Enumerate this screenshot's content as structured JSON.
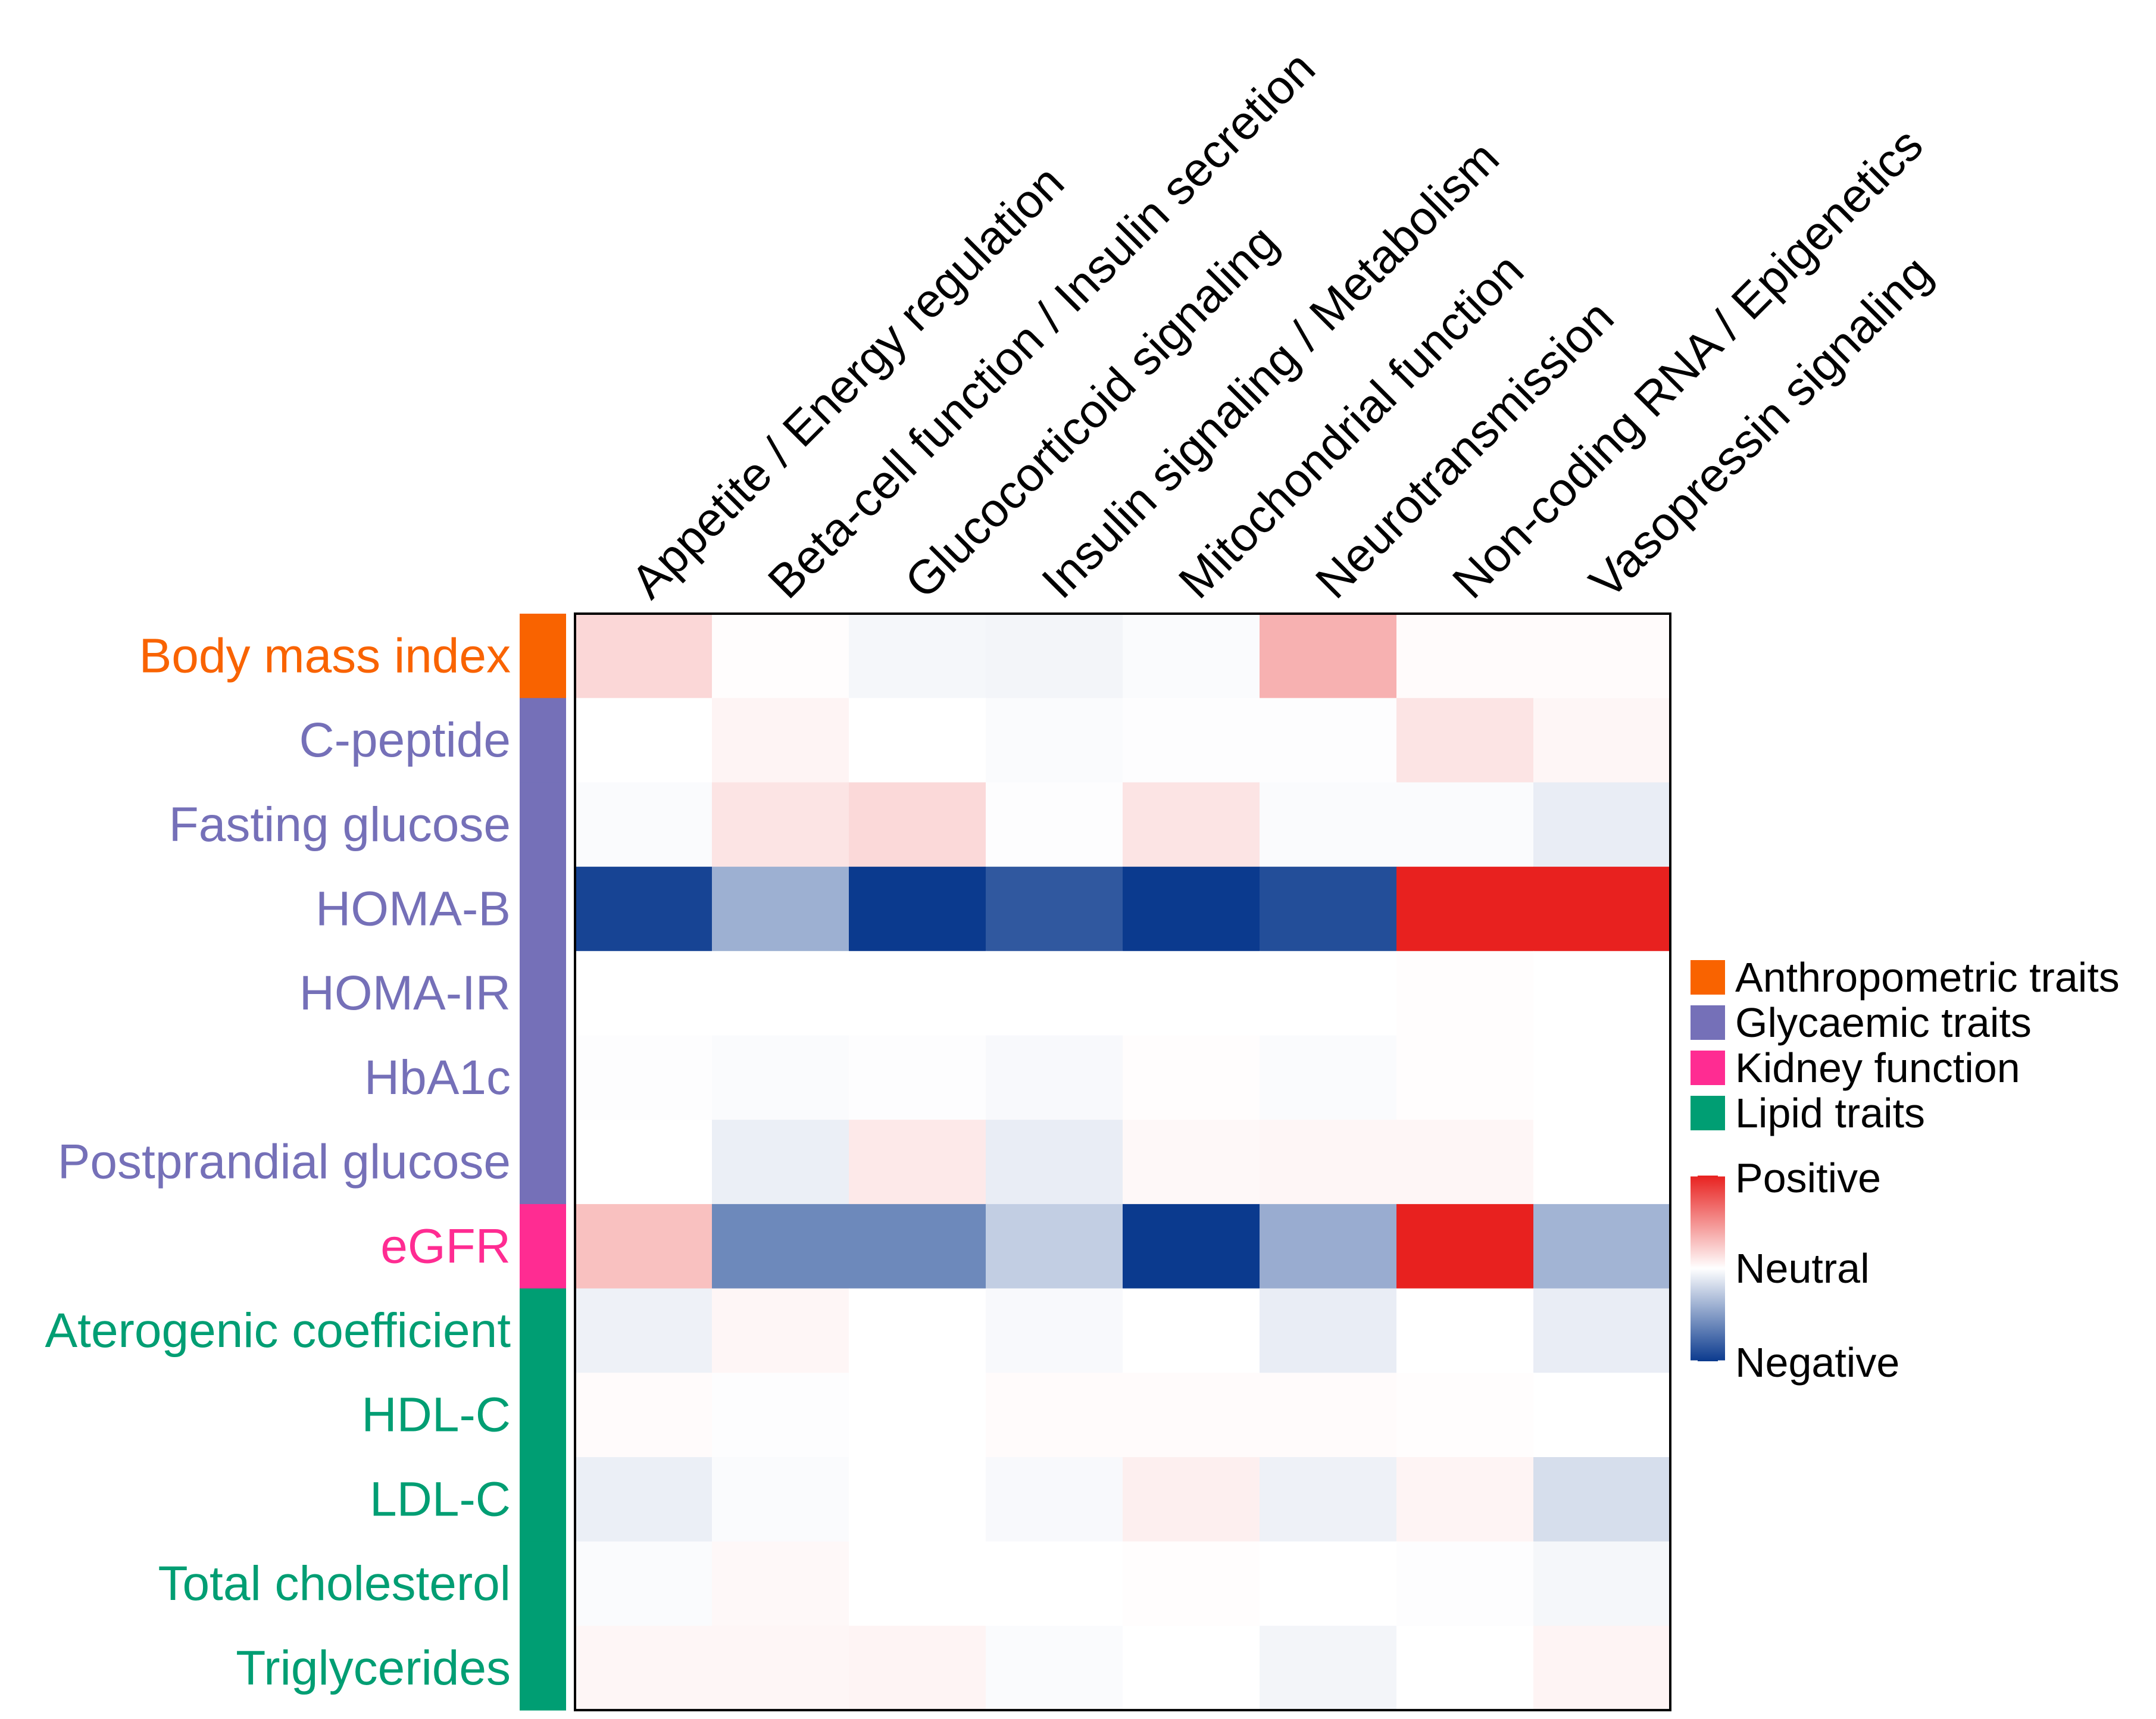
{
  "chart_data": {
    "type": "heatmap",
    "title": "",
    "columns": [
      "Appetite / Energy regulation",
      "Beta-cell function / Insulin secretion",
      "Glucocorticoid signaling",
      "Insulin signaling / Metabolism",
      "Mitochondrial function",
      "Neurotransmission",
      "Non-coding RNA / Epigenetics",
      "Vasopressin signaling"
    ],
    "rows": [
      "Body mass index",
      "C-peptide",
      "Fasting glucose",
      "HOMA-B",
      "HOMA-IR",
      "HbA1c",
      "Postprandial glucose",
      "eGFR",
      "Aterogenic coefficient",
      "HDL-C",
      "LDL-C",
      "Total cholesterol",
      "Triglycerides"
    ],
    "row_groups": [
      "Anthropometric traits",
      "Glycaemic traits",
      "Glycaemic traits",
      "Glycaemic traits",
      "Glycaemic traits",
      "Glycaemic traits",
      "Glycaemic traits",
      "Kidney function",
      "Lipid traits",
      "Lipid traits",
      "Lipid traits",
      "Lipid traits",
      "Lipid traits"
    ],
    "values": [
      [
        0.18,
        0.01,
        -0.04,
        -0.05,
        -0.02,
        0.35,
        0.02,
        0.02
      ],
      [
        0.0,
        0.05,
        0.0,
        -0.02,
        -0.01,
        -0.01,
        0.12,
        0.04
      ],
      [
        -0.02,
        0.12,
        0.17,
        -0.01,
        0.12,
        -0.02,
        -0.02,
        -0.09
      ],
      [
        -0.95,
        -0.4,
        -1.0,
        -0.85,
        -1.0,
        -0.9,
        1.0,
        1.0
      ],
      [
        0.0,
        0.0,
        0.0,
        0.0,
        0.0,
        0.0,
        0.01,
        0.0
      ],
      [
        -0.01,
        -0.02,
        -0.01,
        -0.03,
        0.01,
        -0.02,
        0.01,
        0.0
      ],
      [
        0.0,
        -0.08,
        0.1,
        -0.09,
        0.03,
        0.04,
        0.04,
        0.0
      ],
      [
        0.28,
        -0.6,
        -0.6,
        -0.25,
        -1.0,
        -0.42,
        1.0,
        -0.38
      ],
      [
        -0.07,
        0.04,
        0.0,
        -0.03,
        0.0,
        -0.09,
        0.0,
        -0.09
      ],
      [
        0.02,
        -0.01,
        0.0,
        0.02,
        0.02,
        0.02,
        0.01,
        0.0
      ],
      [
        -0.08,
        -0.02,
        0.0,
        -0.03,
        0.07,
        -0.07,
        0.05,
        -0.17
      ],
      [
        -0.02,
        0.03,
        0.0,
        0.0,
        0.01,
        0.0,
        -0.01,
        -0.04
      ],
      [
        0.04,
        0.04,
        0.05,
        -0.02,
        0.0,
        -0.05,
        0.0,
        0.05
      ]
    ],
    "value_range": [
      -1,
      1
    ],
    "colorscale": {
      "negative": "#0b3a8e",
      "neutral": "#ffffff",
      "positive": "#e8211f"
    },
    "colorbar_labels": {
      "positive": "Positive",
      "neutral": "Neutral",
      "negative": "Negative"
    },
    "legend": {
      "placement": "right",
      "items": [
        {
          "label": "Anthropometric traits",
          "color": "#f96300"
        },
        {
          "label": "Glycaemic traits",
          "color": "#7570b8"
        },
        {
          "label": "Kidney function",
          "color": "#ff2c92"
        },
        {
          "label": "Lipid traits",
          "color": "#009e73"
        }
      ]
    }
  }
}
